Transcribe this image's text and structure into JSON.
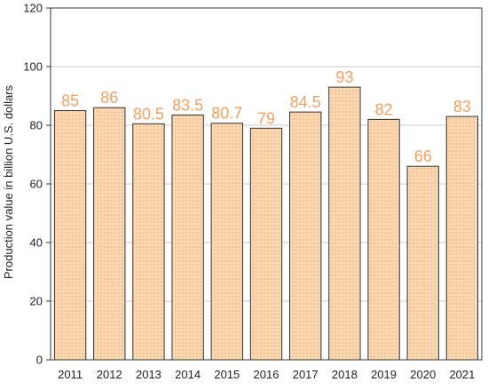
{
  "chart_data": {
    "type": "bar",
    "categories": [
      "2011",
      "2012",
      "2013",
      "2014",
      "2015",
      "2016",
      "2017",
      "2018",
      "2019",
      "2020",
      "2021"
    ],
    "values": [
      85,
      86,
      80.5,
      83.5,
      80.7,
      79,
      84.5,
      93,
      82,
      66,
      83
    ],
    "data_labels": [
      "85",
      "86",
      "80.5",
      "83.5",
      "80.7",
      "79",
      "84.5",
      "93",
      "82",
      "66",
      "83"
    ],
    "title": "",
    "xlabel": "",
    "ylabel": "Production value in billion U.S. dollars",
    "ylim": [
      0,
      120
    ],
    "yticks": [
      0,
      20,
      40,
      60,
      80,
      100,
      120
    ],
    "grid": true,
    "legend": "none",
    "colors": {
      "bar_fill": "#fbd7b0",
      "bar_dots": "#c48a55",
      "bar_stroke": "#333333",
      "data_label": "#f0a060",
      "grid": "#c8c8c8",
      "axis": "#333333"
    }
  }
}
